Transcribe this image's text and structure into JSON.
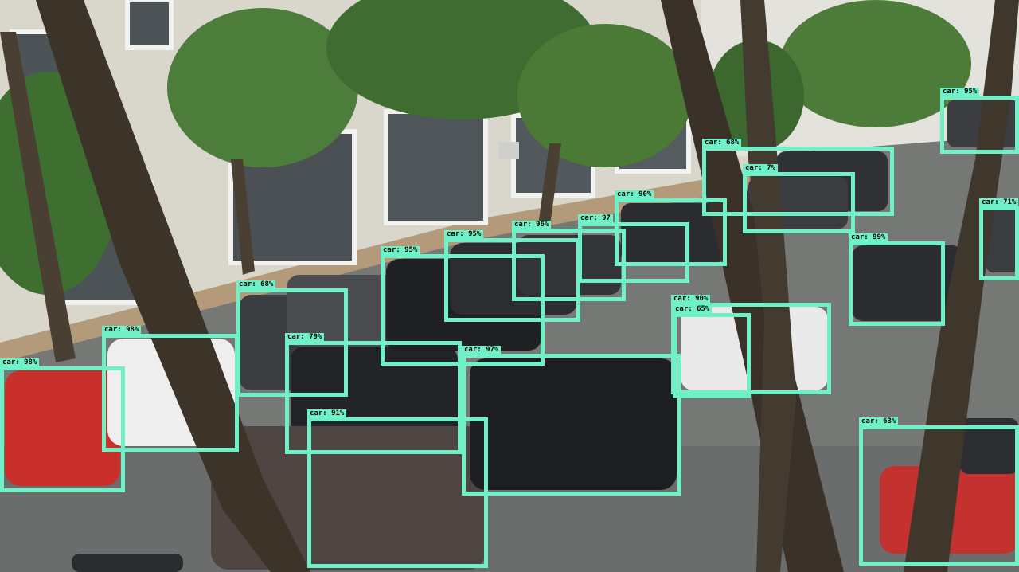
{
  "theme": {
    "box_color": "#6ff0c6",
    "label_text_color": "#000000"
  },
  "detections": [
    {
      "label": "car: 98%"
    },
    {
      "label": "car: 98%"
    },
    {
      "label": "car: 68%"
    },
    {
      "label": "car: 79%"
    },
    {
      "label": "car: 91%"
    },
    {
      "label": "car: 95%"
    },
    {
      "label": "car: 95%"
    },
    {
      "label": "car: 96%"
    },
    {
      "label": "car: 97"
    },
    {
      "label": "car: 97%"
    },
    {
      "label": "car: 90%"
    },
    {
      "label": "car: 68%"
    },
    {
      "label": "car: 7%"
    },
    {
      "label": "car: 99%"
    },
    {
      "label": "car: 95%"
    },
    {
      "label": "car: 71%"
    },
    {
      "label": "car: 90%"
    },
    {
      "label": "car: 65%"
    },
    {
      "label": "car: 63%"
    }
  ]
}
